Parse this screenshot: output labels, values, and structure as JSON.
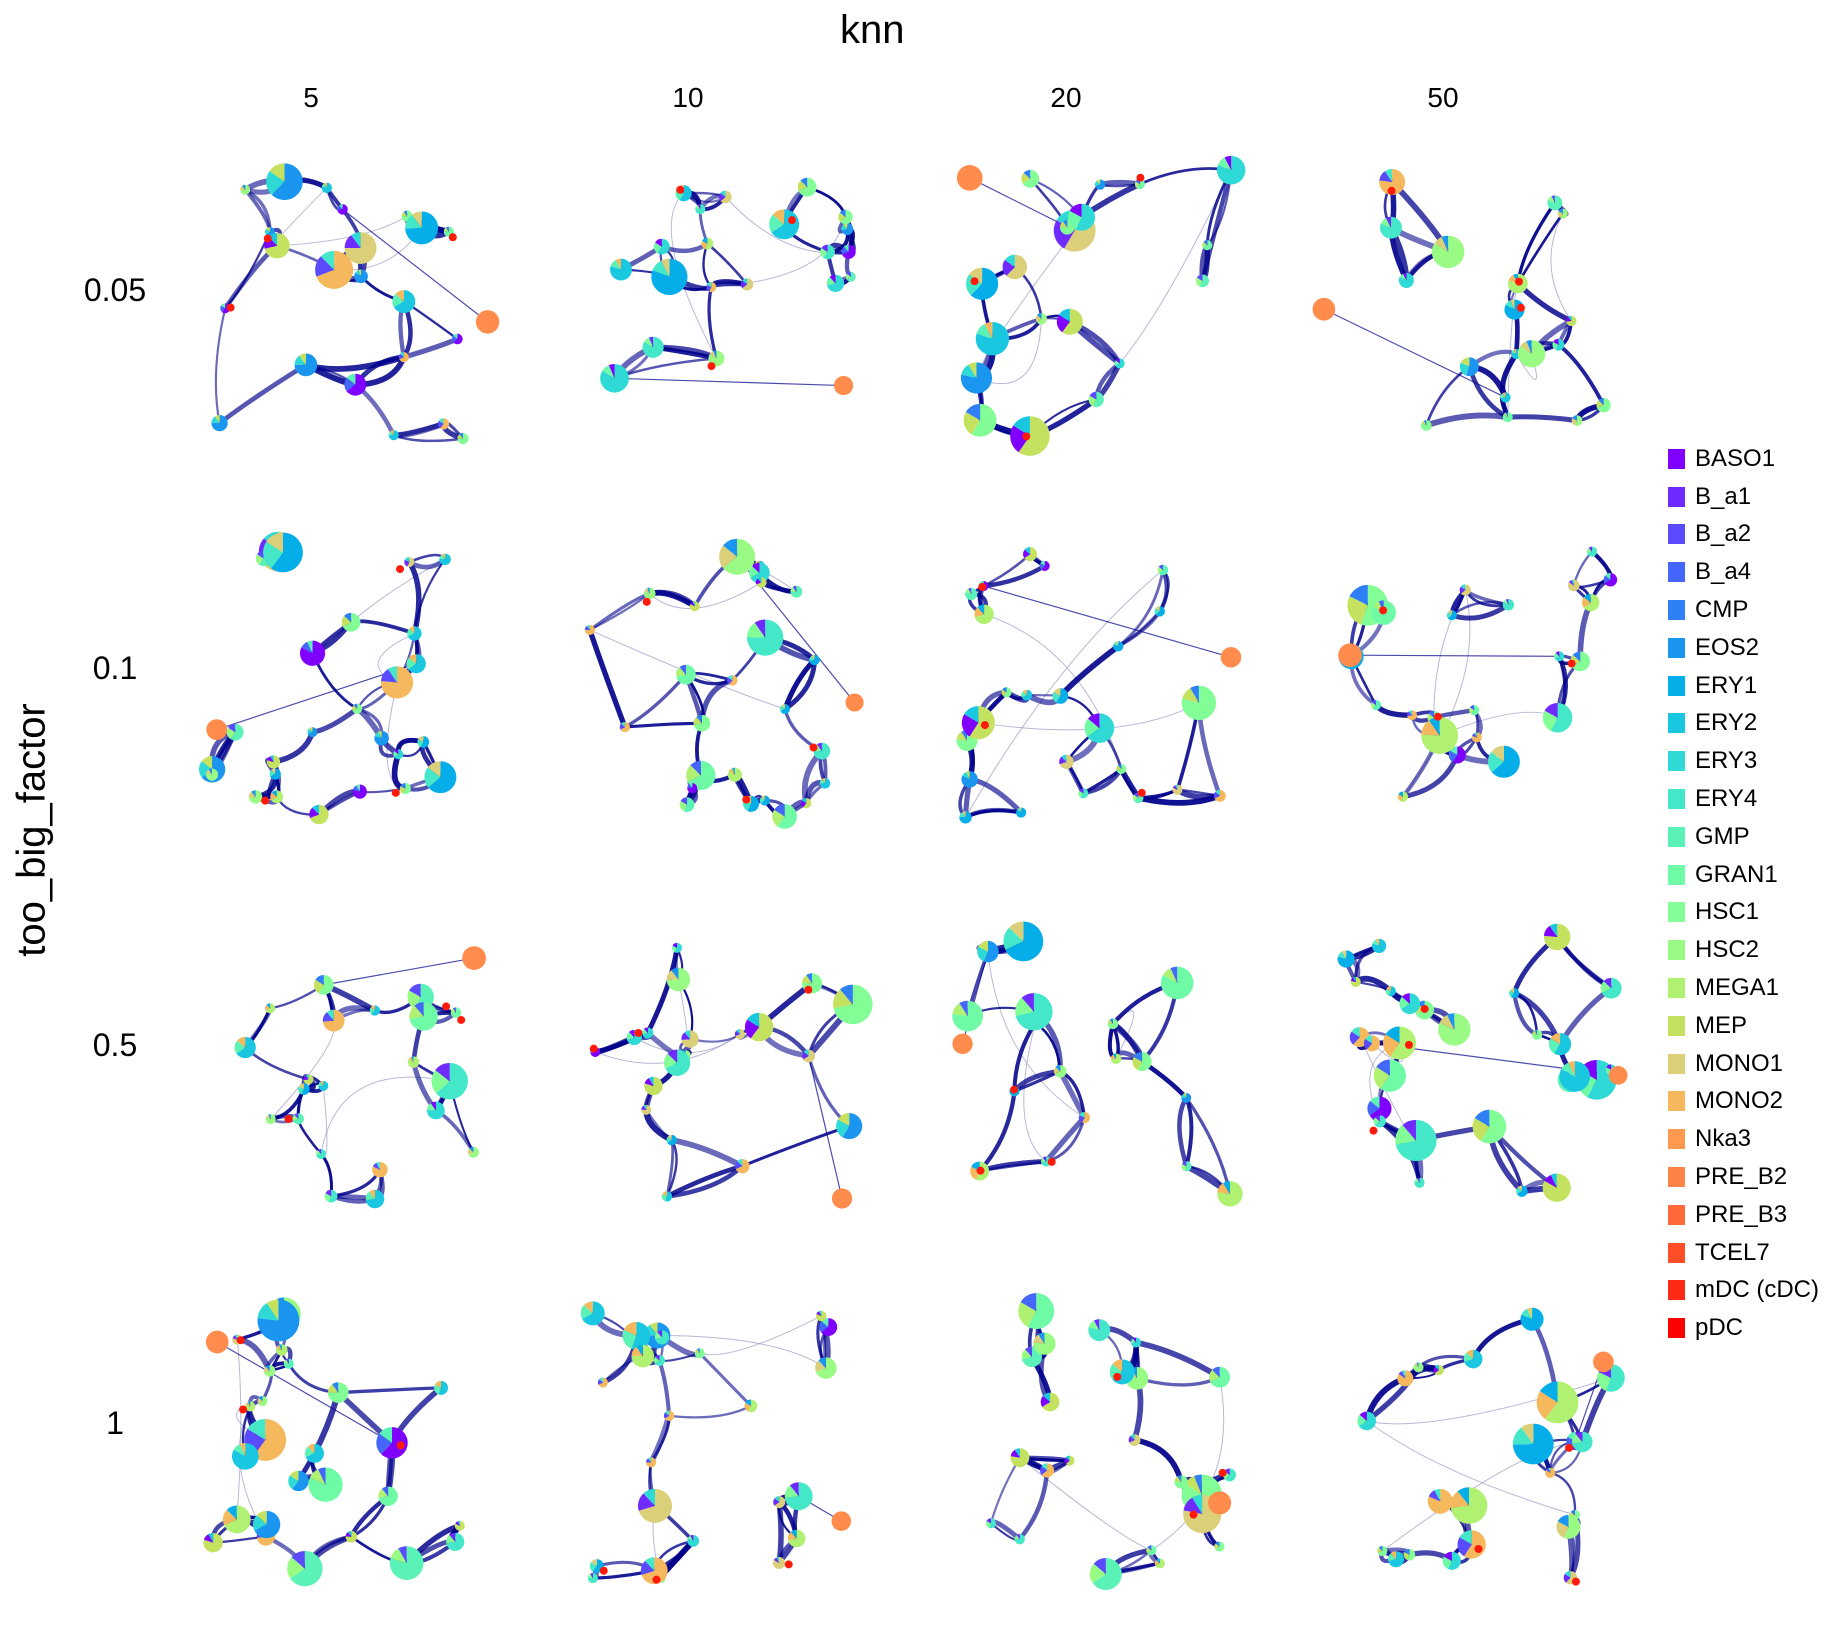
{
  "figure": {
    "title": "knn",
    "col_values": [
      "5",
      "10",
      "20",
      "50"
    ],
    "row_axis_title": "too_big_factor",
    "row_values": [
      "0.05",
      "0.1",
      "0.5",
      "1"
    ]
  },
  "legend": [
    {
      "label": "BASO1",
      "color": "#8000ff"
    },
    {
      "label": "B_a1",
      "color": "#6f2bff"
    },
    {
      "label": "B_a2",
      "color": "#5a4cfe"
    },
    {
      "label": "B_a4",
      "color": "#4466fb"
    },
    {
      "label": "CMP",
      "color": "#2f7ff6"
    },
    {
      "label": "EOS2",
      "color": "#1a96f0"
    },
    {
      "label": "ERY1",
      "color": "#06aee9"
    },
    {
      "label": "ERY2",
      "color": "#1ac7e1"
    },
    {
      "label": "ERY3",
      "color": "#2fd9d5"
    },
    {
      "label": "ERY4",
      "color": "#44e8c8"
    },
    {
      "label": "GMP",
      "color": "#5af2b7"
    },
    {
      "label": "GRAN1",
      "color": "#6ffaa6"
    },
    {
      "label": "HSC1",
      "color": "#83fd95"
    },
    {
      "label": "HSC2",
      "color": "#9afb84"
    },
    {
      "label": "MEGA1",
      "color": "#b0f171"
    },
    {
      "label": "MEP",
      "color": "#c4e25f"
    },
    {
      "label": "MONO1",
      "color": "#dccf7a"
    },
    {
      "label": "MONO2",
      "color": "#f5b85c"
    },
    {
      "label": "Nka3",
      "color": "#ff9950"
    },
    {
      "label": "PRE_B2",
      "color": "#ff8247"
    },
    {
      "label": "PRE_B3",
      "color": "#ff6a38"
    },
    {
      "label": "TCEL7",
      "color": "#ff4d28"
    },
    {
      "label": "mDC (cDC)",
      "color": "#ff2a15"
    },
    {
      "label": "pDC",
      "color": "#ff0000"
    }
  ],
  "colors": {
    "edge": "#00008b",
    "edge_faint": "#8888bb",
    "node_orange": "#ff8c4c",
    "node_red": "#ff1a0a"
  }
}
